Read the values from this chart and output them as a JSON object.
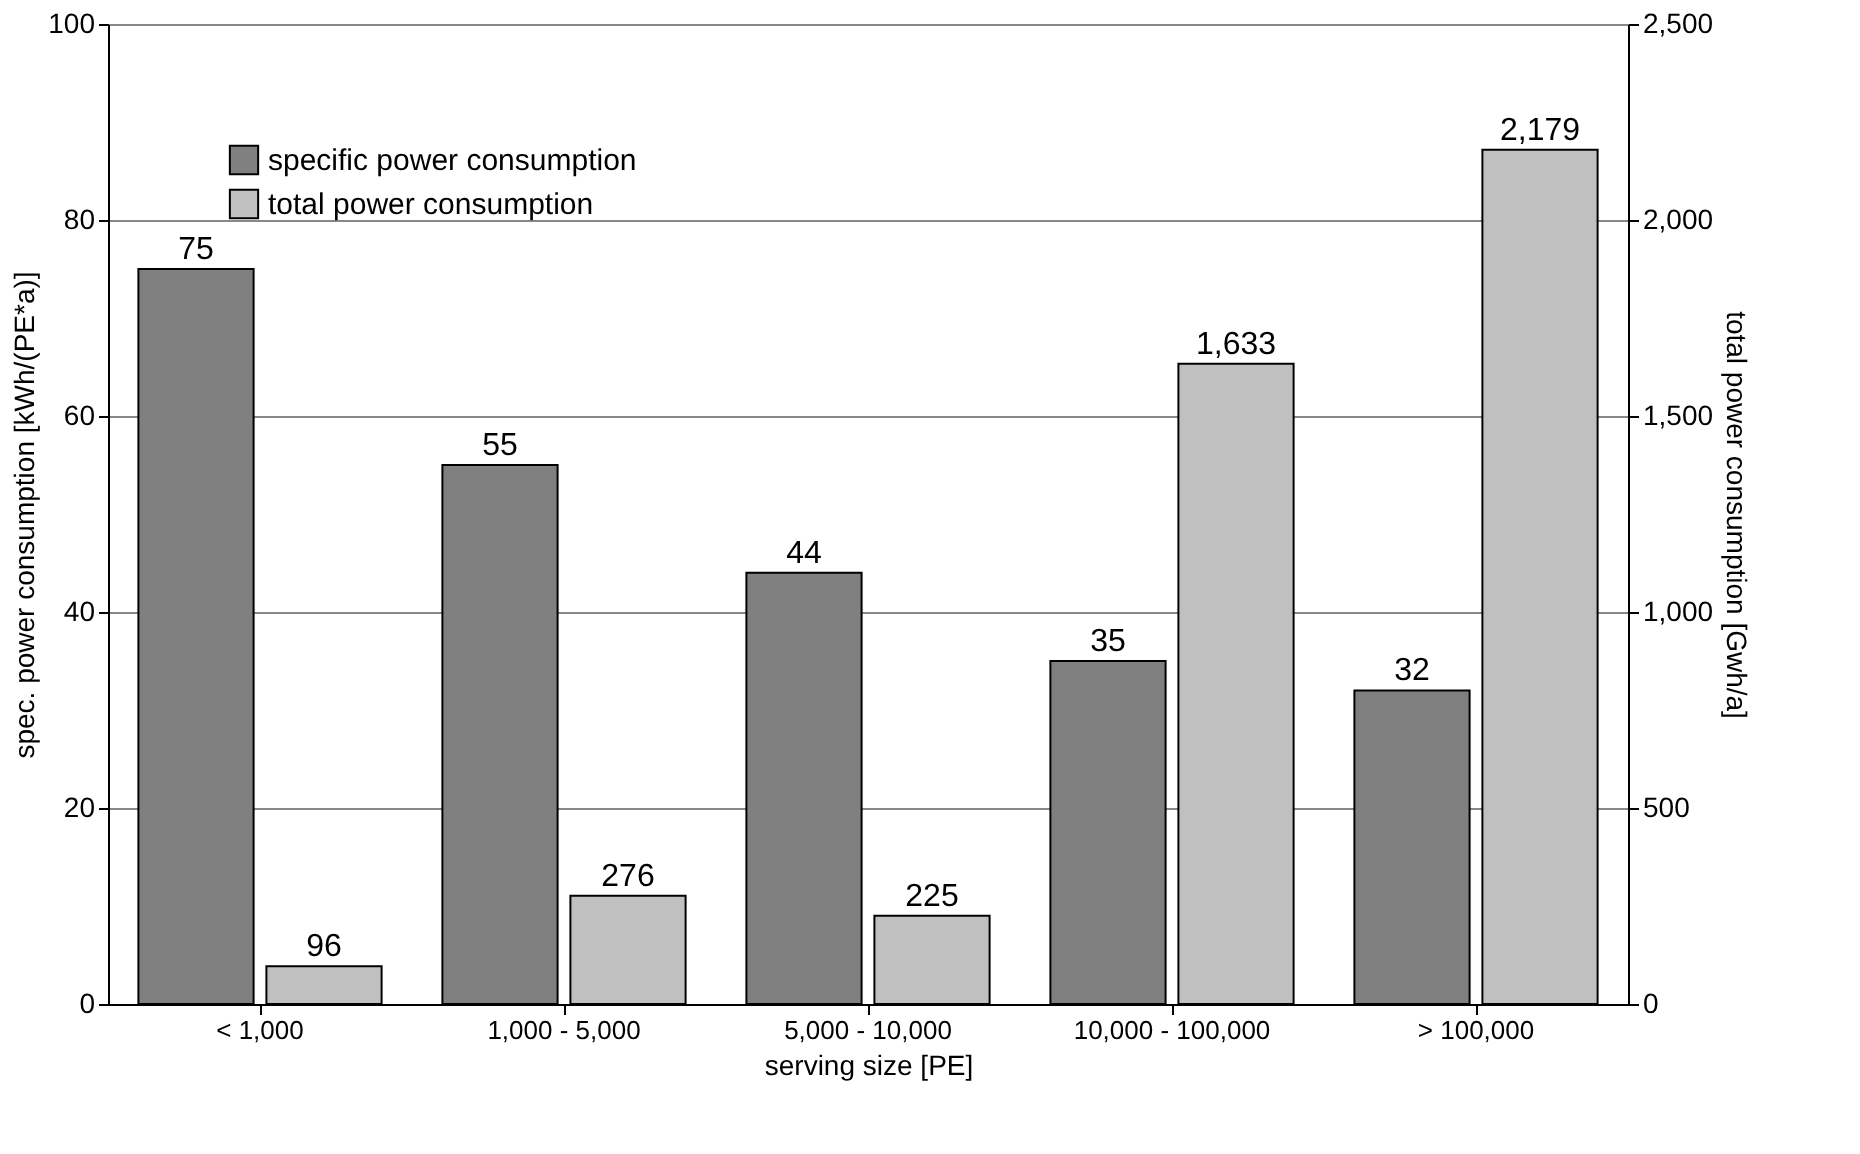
{
  "chart_data": {
    "type": "bar",
    "xlabel": "serving size [PE]",
    "ylabel": "spec. power consumption [kWh/(PE*a)]",
    "y2label": "total power consumption [Gwh/a]",
    "categories": [
      "< 1,000",
      "1,000 - 5,000",
      "5,000 - 10,000",
      "10,000 - 100,000",
      "> 100,000"
    ],
    "series": [
      {
        "name": "specific power consumption",
        "color": "#808080",
        "values": [
          75,
          55,
          44,
          35,
          32
        ],
        "value_labels": [
          "75",
          "55",
          "44",
          "35",
          "32"
        ]
      },
      {
        "name": "total power consumption",
        "color": "#c0c0c0",
        "axis": "y2",
        "values": [
          96,
          276,
          225,
          1633,
          2179
        ],
        "value_labels": [
          "96",
          "276",
          "225",
          "1,633",
          "2,179"
        ]
      }
    ],
    "ylim": [
      0,
      100
    ],
    "yticks": [
      0,
      20,
      40,
      60,
      80,
      100
    ],
    "y2lim": [
      0,
      2500
    ],
    "y2ticks": [
      0,
      {
        "value": 500,
        "label": "500"
      },
      {
        "value": 1000,
        "label": "1,000"
      },
      {
        "value": 1500,
        "label": "1,500"
      },
      {
        "value": 2000,
        "label": "2,000"
      },
      {
        "value": 2500,
        "label": "2,500"
      }
    ],
    "grid": "y",
    "legend": "top left"
  }
}
